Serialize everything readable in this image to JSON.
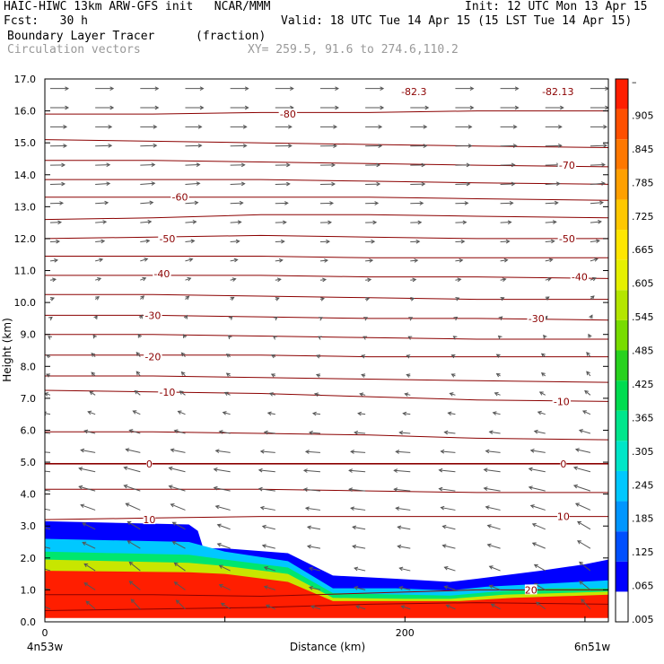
{
  "header": {
    "model_line": "HAIC-HIWC 13km ARW-GFS init   NCAR/MMM",
    "fcst_line": "Fcst:   30 h",
    "init_line": "Init: 12 UTC Mon 13 Apr 15",
    "valid_line": "Valid: 18 UTC Tue 14 Apr 15 (15 LST Tue 14 Apr 15)",
    "field_name": "Boundary Layer Tracer",
    "field_units": "(fraction)",
    "overlay_name": "Circulation vectors",
    "xy_text": "XY= 259.5, 91.6 to 274.6,110.2"
  },
  "colors": {
    "contour": "#8b0000",
    "vector": "#555555",
    "scale": [
      "#ffffff",
      "#0000ff",
      "#0050ff",
      "#0096ff",
      "#00c8ff",
      "#00e6c8",
      "#00e68c",
      "#00dc50",
      "#28d21e",
      "#78dc00",
      "#b4e600",
      "#e6f000",
      "#ffe600",
      "#ffc800",
      "#ffa000",
      "#ff7800",
      "#ff5000",
      "#ff1e00"
    ]
  },
  "chart_data": {
    "type": "heatmap",
    "title": "Boundary Layer Tracer",
    "xlabel": "Distance (km)",
    "ylabel": "Height (km)",
    "xlim": [
      0,
      313
    ],
    "ylim": [
      0,
      17
    ],
    "x_ticks": [
      0,
      200
    ],
    "y_ticks": [
      "0.0",
      "1.0",
      "2.0",
      "3.0",
      "4.0",
      "5.0",
      "6.0",
      "7.0",
      "8.0",
      "9.0",
      "10.0",
      "11.0",
      "12.0",
      "13.0",
      "14.0",
      "15.0",
      "16.0",
      "17.0"
    ],
    "left_endpoint": "4n53w",
    "right_endpoint": "6n51w",
    "colorbar_labels": [
      ".005",
      ".065",
      ".125",
      ".185",
      ".245",
      ".305",
      ".365",
      ".425",
      ".485",
      ".545",
      ".605",
      ".665",
      ".725",
      ".785",
      ".845",
      ".905",
      "–"
    ],
    "contour_labels": [
      {
        "text": "-82.3",
        "x": 205,
        "y": 16.6
      },
      {
        "text": "-82.13",
        "x": 285,
        "y": 16.6
      },
      {
        "text": "-80",
        "x": 135,
        "y": 15.9
      },
      {
        "text": "-70",
        "x": 290,
        "y": 14.3
      },
      {
        "text": "-60",
        "x": 75,
        "y": 13.3
      },
      {
        "text": "-50",
        "x": 68,
        "y": 12.0
      },
      {
        "text": "-50",
        "x": 290,
        "y": 12.0
      },
      {
        "text": "-40",
        "x": 65,
        "y": 10.9
      },
      {
        "text": "-40",
        "x": 297,
        "y": 10.8
      },
      {
        "text": "-30",
        "x": 60,
        "y": 9.6
      },
      {
        "text": "-30",
        "x": 273,
        "y": 9.5
      },
      {
        "text": "-20",
        "x": 60,
        "y": 8.3
      },
      {
        "text": "-10",
        "x": 68,
        "y": 7.2
      },
      {
        "text": "-10",
        "x": 287,
        "y": 6.9
      },
      {
        "text": "0",
        "x": 58,
        "y": 4.95
      },
      {
        "text": "0",
        "x": 288,
        "y": 4.95
      },
      {
        "text": "10",
        "x": 58,
        "y": 3.2
      },
      {
        "text": "10",
        "x": 288,
        "y": 3.3
      },
      {
        "text": "20",
        "x": 270,
        "y": 1.0
      }
    ],
    "contour_lines": [
      {
        "level": 30,
        "y": [
          0.35,
          0.4,
          0.45,
          0.55,
          0.6,
          0.55
        ]
      },
      {
        "level": 20,
        "y": [
          0.85,
          0.85,
          0.8,
          0.9,
          1.0,
          1.0
        ]
      },
      {
        "level": 10,
        "y": [
          3.2,
          3.25,
          3.3,
          3.3,
          3.3,
          3.3
        ]
      },
      {
        "level": 5,
        "y": [
          4.15,
          4.15,
          4.15,
          4.1,
          4.05,
          4.05
        ]
      },
      {
        "level": 0,
        "y": [
          4.95,
          4.95,
          4.95,
          4.95,
          4.95,
          4.95
        ]
      },
      {
        "level": -5,
        "y": [
          5.95,
          5.95,
          5.9,
          5.85,
          5.75,
          5.7
        ]
      },
      {
        "level": -10,
        "y": [
          7.25,
          7.2,
          7.15,
          7.05,
          6.95,
          6.9
        ]
      },
      {
        "level": -15,
        "y": [
          7.7,
          7.7,
          7.65,
          7.6,
          7.55,
          7.5
        ]
      },
      {
        "level": -20,
        "y": [
          8.35,
          8.35,
          8.35,
          8.3,
          8.3,
          8.3
        ]
      },
      {
        "level": -25,
        "y": [
          9.0,
          9.0,
          8.95,
          8.9,
          8.85,
          8.85
        ]
      },
      {
        "level": -30,
        "y": [
          9.6,
          9.6,
          9.55,
          9.5,
          9.5,
          9.45
        ]
      },
      {
        "level": -35,
        "y": [
          10.25,
          10.25,
          10.2,
          10.15,
          10.1,
          10.1
        ]
      },
      {
        "level": -40,
        "y": [
          10.85,
          10.85,
          10.85,
          10.8,
          10.8,
          10.75
        ]
      },
      {
        "level": -45,
        "y": [
          11.45,
          11.45,
          11.45,
          11.4,
          11.4,
          11.4
        ]
      },
      {
        "level": -50,
        "y": [
          12.0,
          12.05,
          12.1,
          12.05,
          12.0,
          12.0
        ]
      },
      {
        "level": -55,
        "y": [
          12.6,
          12.65,
          12.75,
          12.75,
          12.7,
          12.65
        ]
      },
      {
        "level": -60,
        "y": [
          13.3,
          13.3,
          13.3,
          13.3,
          13.25,
          13.2
        ]
      },
      {
        "level": -65,
        "y": [
          13.85,
          13.85,
          13.85,
          13.8,
          13.75,
          13.7
        ]
      },
      {
        "level": -70,
        "y": [
          14.45,
          14.45,
          14.4,
          14.35,
          14.3,
          14.25
        ]
      },
      {
        "level": -75,
        "y": [
          15.1,
          15.05,
          15.0,
          14.95,
          14.9,
          14.85
        ]
      },
      {
        "level": -80,
        "y": [
          15.9,
          15.9,
          15.95,
          15.95,
          16.0,
          16.0
        ]
      }
    ],
    "contour_x": [
      0,
      60,
      120,
      180,
      240,
      313
    ],
    "tracer_layers": [
      {
        "level": 0.005,
        "top": [
          [
            0,
            3.15
          ],
          [
            80,
            3.05
          ],
          [
            85,
            2.85
          ],
          [
            88,
            2.3
          ],
          [
            100,
            2.3
          ],
          [
            135,
            2.15
          ],
          [
            160,
            1.45
          ],
          [
            195,
            1.35
          ],
          [
            225,
            1.25
          ],
          [
            240,
            1.35
          ],
          [
            275,
            1.6
          ],
          [
            300,
            1.8
          ],
          [
            313,
            1.95
          ]
        ]
      },
      {
        "level": 0.185,
        "top": [
          [
            0,
            2.6
          ],
          [
            80,
            2.5
          ],
          [
            100,
            2.2
          ],
          [
            135,
            1.9
          ],
          [
            160,
            1.05
          ],
          [
            195,
            1.05
          ],
          [
            225,
            0.98
          ],
          [
            245,
            1.1
          ],
          [
            280,
            1.2
          ],
          [
            313,
            1.3
          ]
        ]
      },
      {
        "level": 0.365,
        "top": [
          [
            0,
            2.2
          ],
          [
            80,
            2.1
          ],
          [
            100,
            1.95
          ],
          [
            135,
            1.7
          ],
          [
            160,
            0.9
          ],
          [
            200,
            0.85
          ],
          [
            225,
            0.82
          ],
          [
            250,
            0.95
          ],
          [
            280,
            1.05
          ],
          [
            313,
            1.05
          ]
        ]
      },
      {
        "level": 0.605,
        "top": [
          [
            0,
            1.95
          ],
          [
            80,
            1.85
          ],
          [
            100,
            1.75
          ],
          [
            135,
            1.5
          ],
          [
            160,
            0.75
          ],
          [
            200,
            0.72
          ],
          [
            225,
            0.72
          ],
          [
            255,
            0.85
          ],
          [
            285,
            0.9
          ],
          [
            313,
            0.95
          ]
        ]
      },
      {
        "level": 0.905,
        "top": [
          [
            0,
            1.6
          ],
          [
            80,
            1.55
          ],
          [
            100,
            1.5
          ],
          [
            135,
            1.25
          ],
          [
            160,
            0.65
          ],
          [
            200,
            0.65
          ],
          [
            230,
            0.65
          ],
          [
            260,
            0.75
          ],
          [
            313,
            0.85
          ]
        ]
      }
    ],
    "vector_columns_x": [
      0,
      25,
      50,
      75,
      100,
      125,
      150,
      175,
      200,
      225,
      250,
      275,
      300
    ],
    "vector_rows_km": [
      0.4,
      1.0,
      1.6,
      2.3,
      2.9,
      3.5,
      4.1,
      4.7,
      5.3,
      5.9,
      6.5,
      7.1,
      7.7,
      8.3,
      8.9,
      9.5,
      10.1,
      10.7,
      11.3,
      11.9,
      12.5,
      13.1,
      13.7,
      14.3,
      14.9,
      15.5,
      16.1,
      16.7
    ],
    "vector_u_by_row": [
      -0.5,
      -0.6,
      -0.6,
      -0.7,
      -0.7,
      -0.8,
      -0.9,
      -0.9,
      -0.8,
      -0.6,
      -0.4,
      -0.3,
      -0.2,
      -0.2,
      -0.1,
      0.1,
      0.2,
      0.3,
      0.4,
      0.5,
      0.6,
      0.7,
      0.8,
      0.8,
      0.9,
      0.9,
      1.0,
      1.0
    ],
    "vector_v_upward": [
      0.9,
      0.8,
      0.8,
      0.7,
      0.7,
      0.6,
      0.5,
      0.4,
      0.3,
      0.3,
      0.3,
      0.4,
      0.4,
      0.4,
      0.3,
      0.3,
      0.3,
      0.2,
      0.2,
      0.1,
      0.1,
      0.1,
      0.1,
      0.05,
      0.05,
      0,
      0,
      0
    ],
    "vector_column_updraft": [
      0,
      0.4,
      0.6,
      0.5,
      0.2,
      0,
      -0.1,
      -0.1,
      -0.1,
      0,
      0.1,
      0.3,
      0.6
    ]
  }
}
